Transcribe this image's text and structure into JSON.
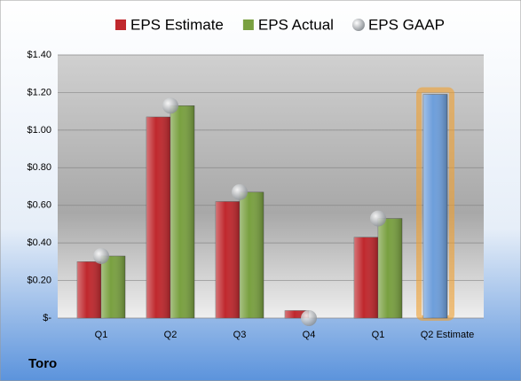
{
  "chart_data": {
    "type": "bar",
    "caption": "Toro",
    "categories": [
      "Q1",
      "Q2",
      "Q3",
      "Q4",
      "Q1",
      "Q2 Estimate"
    ],
    "series": [
      {
        "name": "EPS Estimate",
        "color": "#c0282d",
        "colors": [
          "#c0282d",
          "#c0282d",
          "#c0282d",
          "#c0282d",
          "#c0282d",
          "#6d9edb"
        ],
        "values": [
          0.3,
          1.07,
          0.62,
          0.04,
          0.43,
          1.19
        ]
      },
      {
        "name": "EPS Actual",
        "color": "#79a040",
        "values": [
          0.33,
          1.13,
          0.67,
          null,
          0.53,
          null
        ]
      },
      {
        "name": "EPS GAAP",
        "color": "#b4b8bc",
        "marker": "circle",
        "values": [
          0.33,
          1.13,
          0.67,
          0.0,
          0.53,
          null
        ]
      }
    ],
    "ylim": [
      0,
      1.4
    ],
    "yticks": [
      {
        "value": 0,
        "label": "$-"
      },
      {
        "value": 0.2,
        "label": "$0.20"
      },
      {
        "value": 0.4,
        "label": "$0.40"
      },
      {
        "value": 0.6,
        "label": "$0.60"
      },
      {
        "value": 0.8,
        "label": "$0.80"
      },
      {
        "value": 1.0,
        "label": "$1.00"
      },
      {
        "value": 1.2,
        "label": "$1.20"
      },
      {
        "value": 1.4,
        "label": "$1.40"
      }
    ],
    "grid": true
  }
}
